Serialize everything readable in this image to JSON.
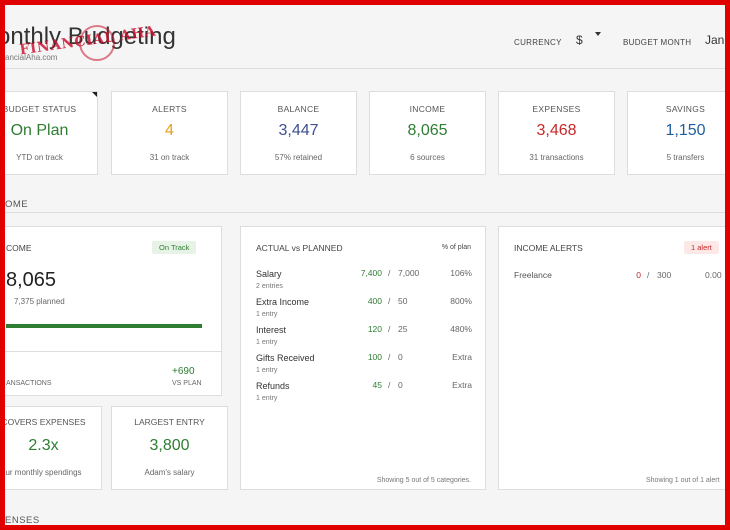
{
  "header": {
    "title": "onthly Budgeting",
    "subtitle": "ancialAha.com",
    "logo_text": "FINANCIAL AHA",
    "currency_label": "CURRENCY",
    "currency_value": "$",
    "budget_month_label": "BUDGET MONTH",
    "budget_month_value": "Jan"
  },
  "kpis": [
    {
      "label": "BUDGET STATUS",
      "value": "On Plan",
      "sub": "YTD on track",
      "color": "#2e7d32"
    },
    {
      "label": "ALERTS",
      "value": "4",
      "sub": "31 on track",
      "color": "#e6a117"
    },
    {
      "label": "BALANCE",
      "value": "3,447",
      "sub": "57% retained",
      "color": "#3f4f8f"
    },
    {
      "label": "INCOME",
      "value": "8,065",
      "sub": "6 sources",
      "color": "#2e7d32"
    },
    {
      "label": "EXPENSES",
      "value": "3,468",
      "sub": "31 transactions",
      "color": "#c62828"
    },
    {
      "label": "SAVINGS",
      "value": "1,150",
      "sub": "5 transfers",
      "color": "#1f5fa0"
    }
  ],
  "income_section_label": "OME",
  "income_card": {
    "title": "COME",
    "badge": "On Track",
    "amount": "8,065",
    "planned": "7,375 planned",
    "progress_fraction": 1.0,
    "transactions_label": "ANSACTIONS",
    "vs_plan_value": "+690",
    "vs_plan_label": "VS PLAN"
  },
  "covers": {
    "label": "COVERS EXPENSES",
    "value": "2.3x",
    "sub": "ur monthly spendings"
  },
  "largest": {
    "label": "LARGEST ENTRY",
    "value": "3,800",
    "sub": "Adam's salary"
  },
  "actual_vs_planned": {
    "title": "ACTUAL vs PLANNED",
    "col_label": "% of plan",
    "rows": [
      {
        "name": "Salary",
        "sub": "2 entries",
        "actual": "7,400",
        "sep": "/",
        "plan": "7,000",
        "pct": "106%"
      },
      {
        "name": "Extra Income",
        "sub": "1 entry",
        "actual": "400",
        "sep": "/",
        "plan": "50",
        "pct": "800%"
      },
      {
        "name": "Interest",
        "sub": "1 entry",
        "actual": "120",
        "sep": "/",
        "plan": "25",
        "pct": "480%"
      },
      {
        "name": "Gifts Received",
        "sub": "1 entry",
        "actual": "100",
        "sep": "/",
        "plan": "0",
        "pct": "Extra"
      },
      {
        "name": "Refunds",
        "sub": "1 entry",
        "actual": "45",
        "sep": "/",
        "plan": "0",
        "pct": "Extra"
      }
    ],
    "footer": "Showing 5 out of 5 categories."
  },
  "income_alerts": {
    "title": "INCOME ALERTS",
    "badge": "1 alert",
    "rows": [
      {
        "name": "Freelance",
        "actual": "0",
        "sep": "/",
        "plan": "300",
        "pct": "0.00"
      }
    ],
    "footer": "Showing 1 out of 1 alert"
  },
  "expenses_section_label": "ENSES"
}
